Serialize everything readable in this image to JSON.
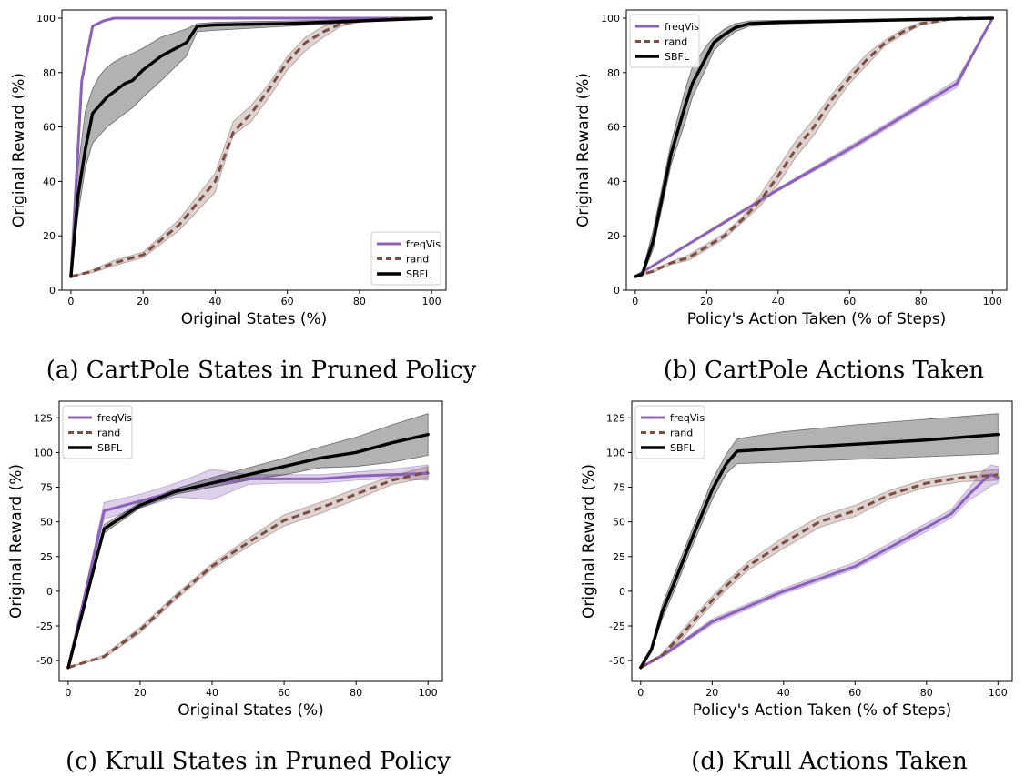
{
  "colors": {
    "freqVis": "#8c62b8",
    "rand": "#7a4e44",
    "SBFL": "#000000"
  },
  "chart_data": [
    {
      "type": "line",
      "caption": "(a) CartPole States in Pruned Policy",
      "xlabel": "Original States (%)",
      "ylabel": "Original Reward (%)",
      "xlim": [
        -2.5,
        104
      ],
      "ylim": [
        0,
        103
      ],
      "xticks": [
        0,
        20,
        40,
        60,
        80,
        100
      ],
      "yticks": [
        0,
        20,
        40,
        60,
        80,
        100
      ],
      "legend_position": "bottom-right",
      "series": [
        {
          "name": "freqVis",
          "x": [
            0,
            3,
            6,
            9,
            12,
            20,
            40,
            60,
            80,
            100
          ],
          "y": [
            5,
            77,
            97,
            99,
            100,
            100,
            100,
            100,
            100,
            100
          ],
          "upper": [],
          "lower": []
        },
        {
          "name": "rand",
          "x": [
            0,
            6,
            12,
            20,
            30,
            40,
            45,
            50,
            55,
            60,
            65,
            70,
            75,
            80,
            90,
            100
          ],
          "y": [
            5,
            7,
            10,
            13,
            24,
            40,
            58,
            65,
            74,
            84,
            91,
            95,
            98,
            99,
            100,
            100
          ],
          "upper": [
            5,
            7.5,
            11,
            14,
            26,
            43,
            62,
            68,
            76,
            86,
            93,
            97,
            99,
            99.5,
            100,
            100
          ],
          "lower": [
            5,
            6.5,
            9,
            12,
            22,
            36,
            57,
            62,
            71,
            81,
            88,
            93,
            97,
            98.5,
            100,
            100
          ]
        },
        {
          "name": "SBFL",
          "x": [
            0,
            2,
            4,
            6,
            8,
            10,
            12,
            15,
            17,
            20,
            25,
            32,
            35,
            40,
            60,
            80,
            100
          ],
          "y": [
            5,
            35,
            52,
            65,
            68,
            71,
            73,
            76,
            77,
            81,
            86,
            91,
            97,
            97.5,
            98,
            99,
            100
          ],
          "upper": [
            5,
            45,
            66,
            74,
            79,
            82,
            84,
            86,
            87,
            89,
            93,
            96,
            98,
            98.5,
            99,
            99.5,
            100
          ],
          "lower": [
            5,
            28,
            45,
            54,
            57,
            60,
            62,
            65,
            67,
            71,
            77,
            86,
            95,
            95.5,
            97,
            98.5,
            100
          ]
        }
      ]
    },
    {
      "type": "line",
      "caption": "(b) CartPole Actions Taken",
      "xlabel": "Policy's Action Taken (% of Steps)",
      "ylabel": "Original Reward (%)",
      "xlim": [
        -2.5,
        104
      ],
      "ylim": [
        0,
        103
      ],
      "xticks": [
        0,
        20,
        40,
        60,
        80,
        100
      ],
      "yticks": [
        0,
        20,
        40,
        60,
        80,
        100
      ],
      "legend_position": "top-left",
      "series": [
        {
          "name": "freqVis",
          "x": [
            0,
            20,
            40,
            60,
            80,
            90,
            100
          ],
          "y": [
            5,
            21,
            37,
            52,
            68,
            76,
            100
          ],
          "upper": [
            5,
            21.5,
            37.5,
            53,
            69,
            77.5,
            100
          ],
          "lower": [
            5,
            20.5,
            36.5,
            51,
            67,
            74.5,
            100
          ]
        },
        {
          "name": "rand",
          "x": [
            0,
            5,
            10,
            15,
            20,
            25,
            30,
            35,
            40,
            45,
            50,
            55,
            60,
            65,
            70,
            75,
            80,
            85,
            90,
            100
          ],
          "y": [
            5,
            7,
            10,
            12,
            16,
            20,
            26,
            33,
            42,
            52,
            60,
            70,
            78,
            85,
            91,
            95,
            98,
            99,
            100,
            100
          ],
          "upper": [
            5,
            7.5,
            10.5,
            13,
            17,
            21,
            27,
            35,
            45,
            55,
            63,
            72,
            80,
            87,
            92,
            96,
            98.5,
            99.5,
            100,
            100
          ],
          "lower": [
            5,
            6.5,
            9.5,
            11,
            15,
            19,
            25,
            31,
            39,
            49,
            57,
            67,
            76,
            83,
            90,
            94,
            97.5,
            98.5,
            100,
            100
          ]
        },
        {
          "name": "SBFL",
          "x": [
            0,
            2,
            5,
            10,
            14,
            16,
            20,
            22,
            25,
            28,
            32,
            40,
            60,
            80,
            100
          ],
          "y": [
            5,
            6,
            18,
            50,
            68,
            76,
            86,
            91,
            94,
            96.5,
            98,
            98.5,
            99,
            99.5,
            100
          ],
          "upper": [
            5,
            7,
            22,
            54,
            74,
            82,
            90,
            93,
            96,
            98,
            99,
            99.2,
            99.5,
            99.8,
            100
          ],
          "lower": [
            5,
            5,
            15,
            46,
            62,
            71,
            82,
            88,
            92,
            95,
            97,
            97.8,
            98.5,
            99.2,
            100
          ]
        }
      ]
    },
    {
      "type": "line",
      "caption": "(c) Krull States in Pruned Policy",
      "xlabel": "Original States (%)",
      "ylabel": "Original Reward (%)",
      "xlim": [
        -2.5,
        104
      ],
      "ylim": [
        -65,
        137
      ],
      "xticks": [
        0,
        20,
        40,
        60,
        80,
        100
      ],
      "yticks": [
        -50,
        -25,
        0,
        25,
        50,
        75,
        100,
        125
      ],
      "legend_position": "top-left",
      "series": [
        {
          "name": "freqVis",
          "x": [
            0,
            10,
            20,
            30,
            40,
            50,
            60,
            70,
            80,
            90,
            100
          ],
          "y": [
            -55,
            58,
            65,
            72,
            78,
            81,
            81,
            81,
            83,
            84,
            85
          ],
          "upper": [
            -55,
            64,
            70,
            78,
            88,
            84,
            84,
            84,
            86,
            88,
            91
          ],
          "lower": [
            -55,
            52,
            60,
            68,
            66,
            77,
            78,
            78,
            80,
            81,
            80
          ]
        },
        {
          "name": "rand",
          "x": [
            0,
            10,
            20,
            30,
            40,
            50,
            60,
            70,
            80,
            90,
            100
          ],
          "y": [
            -55,
            -47,
            -28,
            -4,
            18,
            35,
            51,
            60,
            70,
            80,
            86
          ],
          "upper": [
            -55,
            -46,
            -26,
            -2,
            20,
            38,
            55,
            64,
            74,
            83,
            90
          ],
          "lower": [
            -55,
            -48,
            -30,
            -6,
            16,
            32,
            47,
            56,
            66,
            77,
            82
          ]
        },
        {
          "name": "SBFL",
          "x": [
            0,
            10,
            20,
            30,
            40,
            50,
            60,
            70,
            80,
            90,
            100
          ],
          "y": [
            -55,
            45,
            62,
            72,
            78,
            84,
            90,
            96,
            100,
            107,
            113
          ],
          "upper": [
            -55,
            48,
            64,
            74,
            82,
            89,
            96,
            104,
            111,
            120,
            128
          ],
          "lower": [
            -55,
            42,
            60,
            70,
            75,
            80,
            84,
            89,
            90,
            93,
            98
          ]
        }
      ]
    },
    {
      "type": "line",
      "caption": "(d) Krull Actions Taken",
      "xlabel": "Policy's Action Taken (% of Steps)",
      "ylabel": "Original Reward (%)",
      "xlim": [
        -2.5,
        104
      ],
      "ylim": [
        -65,
        137
      ],
      "xticks": [
        0,
        20,
        40,
        60,
        80,
        100
      ],
      "yticks": [
        -50,
        -25,
        0,
        25,
        50,
        75,
        100,
        125
      ],
      "legend_position": "top-left",
      "series": [
        {
          "name": "freqVis",
          "x": [
            0,
            7,
            20,
            40,
            60,
            80,
            87,
            92,
            96,
            98,
            100
          ],
          "y": [
            -55,
            -45,
            -22,
            0,
            18,
            46,
            56,
            70,
            80,
            84,
            82
          ],
          "upper": [
            -55,
            -44,
            -20,
            2,
            21,
            49,
            59,
            75,
            87,
            91,
            90
          ],
          "lower": [
            -55,
            -46,
            -24,
            -2,
            16,
            43,
            53,
            66,
            72,
            76,
            78
          ]
        },
        {
          "name": "rand",
          "x": [
            0,
            6,
            12,
            18,
            24,
            30,
            40,
            50,
            60,
            70,
            80,
            90,
            100
          ],
          "y": [
            -55,
            -46,
            -30,
            -12,
            4,
            18,
            35,
            50,
            58,
            70,
            78,
            82,
            84
          ],
          "upper": [
            -55,
            -45,
            -27,
            -9,
            7,
            21,
            39,
            54,
            62,
            73,
            81,
            85,
            88
          ],
          "lower": [
            -55,
            -47,
            -33,
            -15,
            1,
            15,
            31,
            46,
            54,
            67,
            75,
            79,
            80
          ]
        },
        {
          "name": "SBFL",
          "x": [
            0,
            3,
            6,
            10,
            14,
            20,
            24,
            27,
            40,
            60,
            80,
            100
          ],
          "y": [
            -55,
            -42,
            -15,
            10,
            36,
            73,
            92,
            101,
            103,
            106,
            109,
            113
          ],
          "upper": [
            -55,
            -40,
            -10,
            16,
            42,
            80,
            99,
            110,
            115,
            120,
            124,
            128
          ],
          "lower": [
            -55,
            -44,
            -20,
            4,
            30,
            66,
            85,
            92,
            93,
            95,
            97,
            99
          ]
        }
      ]
    }
  ]
}
